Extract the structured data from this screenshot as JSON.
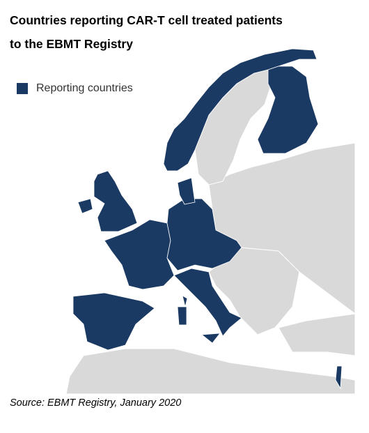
{
  "header": {
    "title_lines": [
      "Countries reporting CAR-T cell treated patients",
      "to the EBMT Registry"
    ]
  },
  "legend": {
    "label": "Reporting countries"
  },
  "footer": {
    "source": "Source: EBMT Registry, January 2020"
  }
}
